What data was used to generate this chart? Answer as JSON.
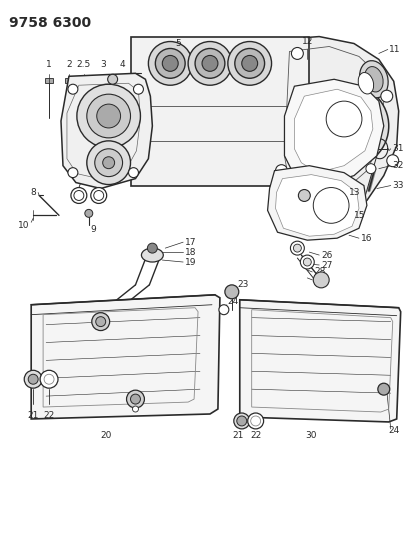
{
  "title": "9758 6300",
  "bg_color": "#ffffff",
  "line_color": "#2a2a2a",
  "lw_main": 1.0,
  "lw_thin": 0.5,
  "fig_width": 4.12,
  "fig_height": 5.33,
  "dpi": 100,
  "label_fontsize": 6.5,
  "title_fontsize": 10
}
